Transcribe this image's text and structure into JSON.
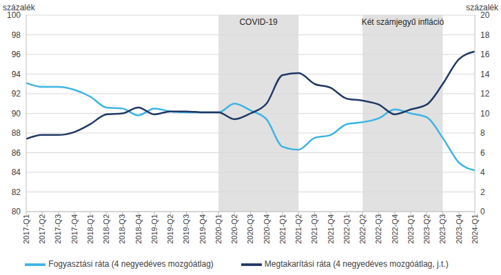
{
  "chart_data": {
    "type": "line",
    "y_label": "százalék",
    "y2_label": "százalék",
    "categories": [
      "2017-Q1",
      "2017-Q2",
      "2017-Q3",
      "2017-Q4",
      "2018-Q1",
      "2018-Q2",
      "2018-Q3",
      "2018-Q4",
      "2019-Q1",
      "2019-Q2",
      "2019-Q3",
      "2019-Q4",
      "2020-Q1",
      "2020-Q2",
      "2020-Q3",
      "2020-Q4",
      "2021-Q1",
      "2021-Q2",
      "2021-Q3",
      "2021-Q4",
      "2022-Q1",
      "2022-Q2",
      "2022-Q3",
      "2022-Q4",
      "2023-Q1",
      "2023-Q2",
      "2023-Q3",
      "2023-Q4",
      "2024-Q1"
    ],
    "series": [
      {
        "name": "Fogyasztási ráta (4 negyedéves mozgóátlag)",
        "color": "#3cb4e5",
        "axis": "y",
        "values": [
          93.1,
          92.7,
          92.7,
          92.4,
          91.7,
          90.6,
          90.5,
          89.8,
          90.5,
          90.2,
          90.1,
          90.1,
          90.1,
          91.0,
          90.3,
          89.4,
          86.6,
          86.3,
          87.5,
          87.8,
          88.9,
          89.1,
          89.5,
          90.4,
          90.0,
          89.6,
          87.5,
          85.0,
          84.2
        ]
      },
      {
        "name": "Megtakarítási ráta (4 negyedéves mozgóátlag, j.t.)",
        "color": "#1f3864",
        "axis": "y2",
        "values": [
          7.4,
          7.8,
          7.8,
          8.1,
          8.9,
          9.9,
          10.0,
          10.6,
          9.9,
          10.2,
          10.2,
          10.1,
          10.1,
          9.4,
          10.0,
          11.0,
          13.9,
          14.1,
          13.0,
          12.6,
          11.5,
          11.3,
          10.9,
          9.9,
          10.4,
          10.9,
          13.0,
          15.5,
          16.3
        ]
      }
    ],
    "ylim": [
      80,
      100
    ],
    "yticks": [
      80,
      82,
      84,
      86,
      88,
      90,
      92,
      94,
      96,
      98,
      100
    ],
    "y2lim": [
      0,
      20
    ],
    "y2ticks": [
      0,
      2,
      4,
      6,
      8,
      10,
      12,
      14,
      16,
      18,
      20
    ],
    "annotations": [
      {
        "text": "COVID-19",
        "x1": "2020-Q1",
        "x2": "2021-Q2"
      },
      {
        "text": "Két számjegyű infláció",
        "x1": "2022-Q2",
        "x2": "2023-Q3"
      }
    ],
    "grid": true,
    "legend": "bottom"
  }
}
